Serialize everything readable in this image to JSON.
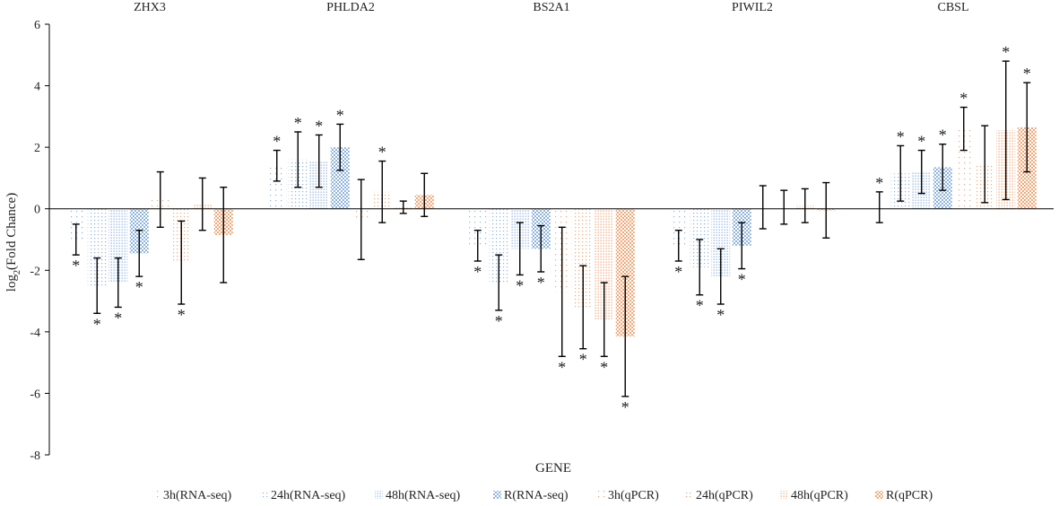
{
  "chart_data": {
    "type": "bar",
    "xlabel": "GENE",
    "ylabel": "log2(Fold Chance)",
    "ylabel_main": "log",
    "ylabel_sub": "2",
    "ylabel_rest": "(Fold Chance)",
    "ylim": [
      -8,
      6
    ],
    "yticks": [
      -8,
      -6,
      -4,
      -2,
      0,
      2,
      4,
      6
    ],
    "ytick_labels": [
      "-8",
      "-6",
      "-4",
      "-2",
      "0",
      "2",
      "4",
      "6"
    ],
    "categories": [
      "ZHX3",
      "PHLDA2",
      "BS2A1",
      "PIWIL2",
      "CBSL"
    ],
    "significance_marker": "*",
    "series": [
      {
        "name": "3h(RNA-seq)",
        "color": "#9dc3e6",
        "pattern": "sparse",
        "values": [
          -1.0,
          1.4,
          -1.2,
          -1.2,
          0.05
        ],
        "errors": [
          0.5,
          0.5,
          0.5,
          0.5,
          0.5
        ],
        "significant": [
          true,
          true,
          true,
          true,
          true
        ]
      },
      {
        "name": "24h(RNA-seq)",
        "color": "#9dc3e6",
        "pattern": "medium",
        "values": [
          -2.5,
          1.6,
          -2.4,
          -1.9,
          1.15
        ],
        "errors": [
          0.9,
          0.9,
          0.9,
          0.9,
          0.9
        ],
        "significant": [
          true,
          true,
          true,
          true,
          true
        ]
      },
      {
        "name": "48h(RNA-seq)",
        "color": "#9dc3e6",
        "pattern": "dense",
        "values": [
          -2.4,
          1.55,
          -1.3,
          -2.2,
          1.2
        ],
        "errors": [
          0.8,
          0.85,
          0.85,
          0.9,
          0.7
        ],
        "significant": [
          true,
          true,
          true,
          true,
          true
        ]
      },
      {
        "name": "R(RNA-seq)",
        "color": "#9dc3e6",
        "pattern": "checker",
        "values": [
          -1.45,
          2.0,
          -1.3,
          -1.2,
          1.35
        ],
        "errors": [
          0.75,
          0.75,
          0.75,
          0.75,
          0.75
        ],
        "significant": [
          true,
          true,
          true,
          true,
          true
        ]
      },
      {
        "name": "3h(qPCR)",
        "color": "#f4b183",
        "pattern": "sparse",
        "values": [
          0.3,
          -0.35,
          -2.7,
          0.05,
          2.6
        ],
        "errors": [
          0.9,
          1.3,
          2.1,
          0.7,
          0.7
        ],
        "significant": [
          false,
          false,
          true,
          false,
          true
        ]
      },
      {
        "name": "24h(qPCR)",
        "color": "#f4b183",
        "pattern": "medium",
        "values": [
          -1.75,
          0.55,
          -3.2,
          0.05,
          1.45
        ],
        "errors": [
          1.35,
          1.0,
          1.35,
          0.55,
          1.25
        ],
        "significant": [
          true,
          true,
          true,
          false,
          false
        ]
      },
      {
        "name": "48h(qPCR)",
        "color": "#f4b183",
        "pattern": "dense",
        "values": [
          0.15,
          0.05,
          -3.6,
          0.1,
          2.55
        ],
        "errors": [
          0.85,
          0.2,
          1.2,
          0.55,
          2.25
        ],
        "significant": [
          false,
          false,
          true,
          false,
          true
        ]
      },
      {
        "name": "R(qPCR)",
        "color": "#f4b183",
        "pattern": "checker",
        "values": [
          -0.85,
          0.45,
          -4.15,
          -0.05,
          2.65
        ],
        "errors": [
          1.55,
          0.7,
          1.95,
          0.9,
          1.45
        ],
        "significant": [
          false,
          false,
          true,
          false,
          true
        ]
      }
    ]
  }
}
